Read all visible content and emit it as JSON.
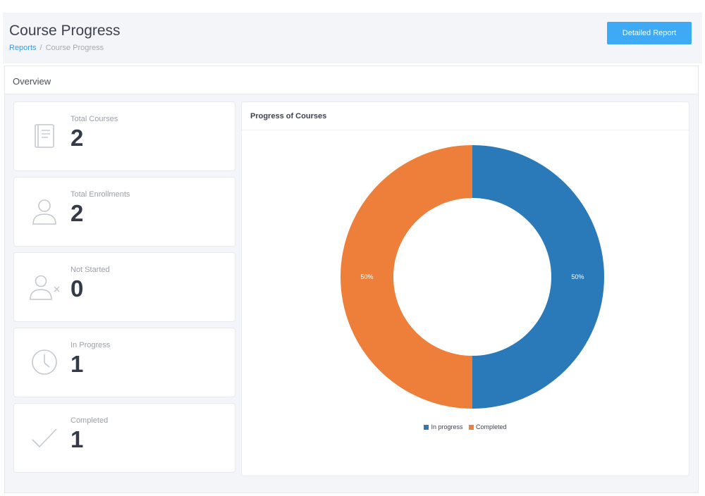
{
  "header": {
    "title": "Course Progress",
    "breadcrumb": {
      "link": "Reports",
      "separator": "/",
      "current": "Course Progress"
    },
    "detail_button": "Detailed Report"
  },
  "overview": {
    "title": "Overview",
    "stats": [
      {
        "label": "Total Courses",
        "value": "2",
        "icon": "book-icon"
      },
      {
        "label": "Total Enrollments",
        "value": "2",
        "icon": "user-icon"
      },
      {
        "label": "Not Started",
        "value": "0",
        "icon": "user-x-icon"
      },
      {
        "label": "In Progress",
        "value": "1",
        "icon": "clock-icon"
      },
      {
        "label": "Completed",
        "value": "1",
        "icon": "check-icon"
      }
    ]
  },
  "chart_panel": {
    "title": "Progress of Courses"
  },
  "chart_data": {
    "type": "pie",
    "donut": true,
    "categories": [
      "In progress",
      "Completed"
    ],
    "values": [
      50,
      50
    ],
    "labels": [
      "50%",
      "50%"
    ],
    "colors": [
      "#2a7ab9",
      "#ee7f3a"
    ],
    "legend": "bottom"
  }
}
